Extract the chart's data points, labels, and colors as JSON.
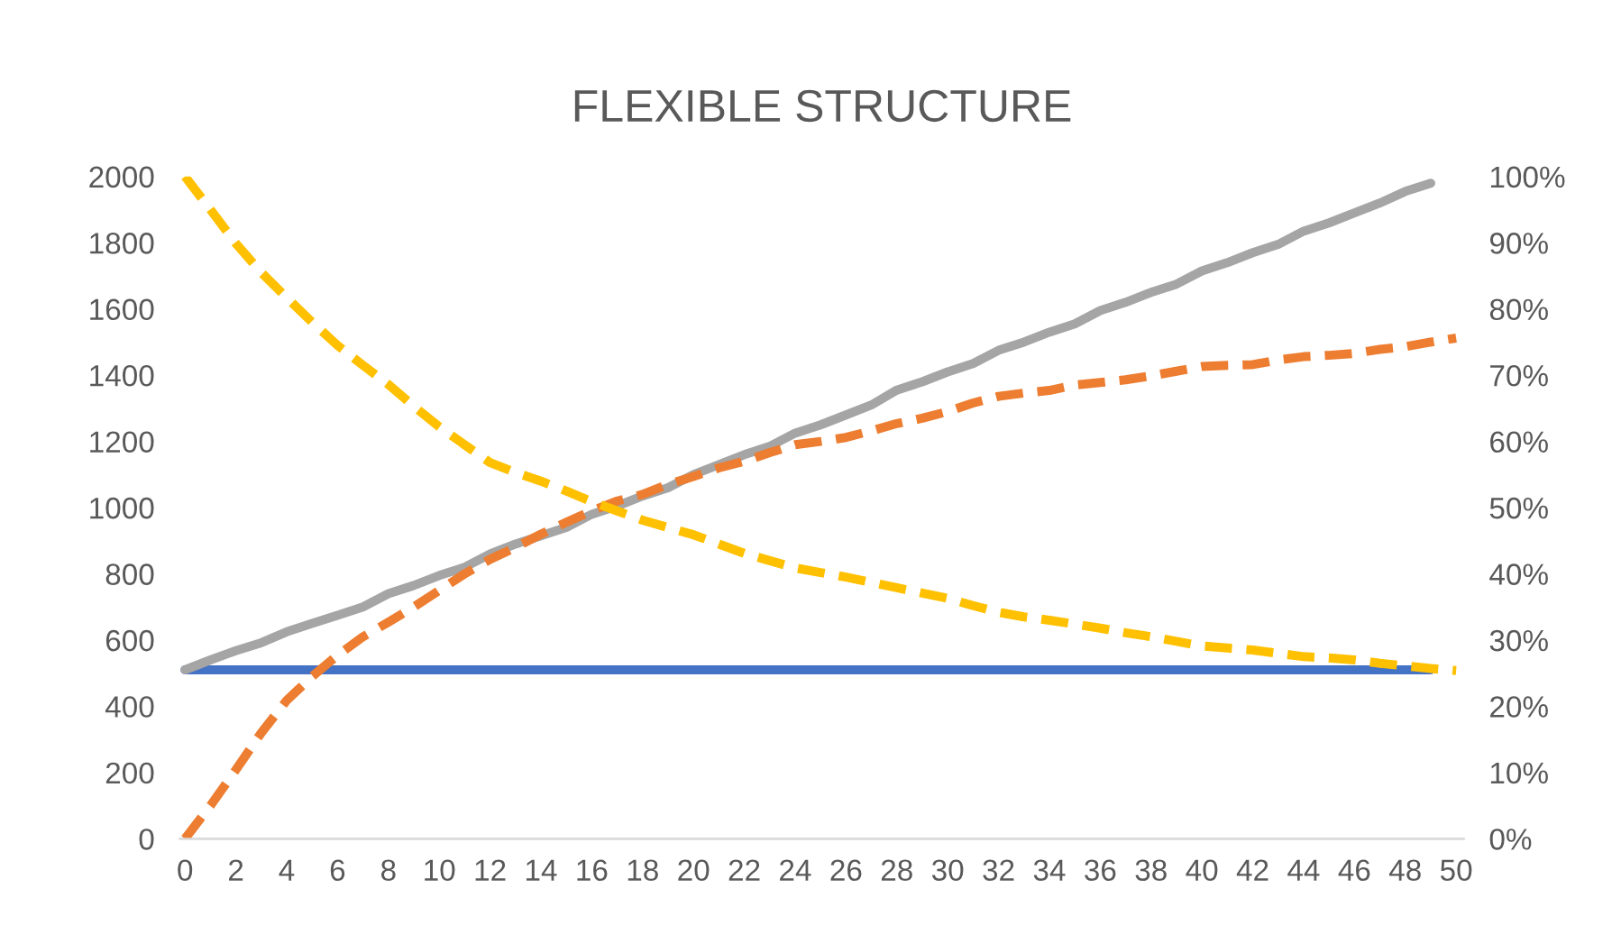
{
  "chart_data": {
    "type": "line",
    "title": "FLEXIBLE STRUCTURE",
    "categories": [
      "0",
      null,
      "2",
      null,
      "4",
      null,
      "6",
      null,
      "8",
      null,
      "10",
      null,
      "12",
      null,
      "14",
      null,
      "16",
      null,
      "18",
      null,
      "20",
      null,
      "22",
      null,
      "24",
      null,
      "26",
      null,
      "28",
      null,
      "30",
      null,
      "32",
      null,
      "34",
      null,
      "36",
      null,
      "38",
      null,
      "40",
      null,
      "42",
      null,
      "44",
      null,
      "46",
      null,
      "48",
      null,
      "50"
    ],
    "series": [
      {
        "color": "#4472c4",
        "line_style": "solid",
        "values": [
          510,
          510,
          510,
          510,
          510,
          510,
          510,
          510,
          510,
          510,
          510,
          510,
          510,
          510,
          510,
          510,
          510,
          510,
          510,
          510,
          510,
          510,
          510,
          510,
          510,
          510,
          510,
          510,
          510,
          510,
          510,
          510,
          510,
          510,
          510,
          510,
          510,
          510,
          510,
          510,
          510,
          510,
          510,
          510,
          510,
          510,
          510,
          510,
          510,
          510,
          null
        ]
      },
      {
        "color": "#a5a5a5",
        "line_style": "solid",
        "values": [
          510,
          540,
          568,
          592,
          625,
          650,
          675,
          700,
          740,
          765,
          795,
          820,
          860,
          890,
          915,
          940,
          980,
          1005,
          1035,
          1060,
          1100,
          1130,
          1160,
          1185,
          1225,
          1250,
          1280,
          1310,
          1355,
          1380,
          1410,
          1435,
          1475,
          1500,
          1530,
          1555,
          1595,
          1620,
          1650,
          1675,
          1715,
          1740,
          1770,
          1795,
          1835,
          1860,
          1890,
          1920,
          1955,
          1980,
          null
        ]
      },
      {
        "color": "#ed7d31",
        "line_style": "dashed",
        "axis": "y2",
        "values": [
          0,
          5,
          10.4,
          16,
          20.9,
          24.5,
          27.7,
          30.5,
          32.7,
          35,
          37.5,
          40,
          42.2,
          44,
          46,
          47.8,
          49.5,
          51,
          52,
          53.5,
          54.7,
          56,
          57,
          58.3,
          59.5,
          60,
          60.6,
          61.6,
          62.7,
          63.5,
          64.5,
          65.8,
          66.8,
          67.3,
          67.7,
          68.5,
          68.9,
          69.3,
          69.9,
          70.6,
          71.3,
          71.5,
          71.6,
          72.3,
          72.8,
          73,
          73.3,
          73.9,
          74.3,
          75,
          75.6
        ]
      },
      {
        "color": "#ffc000",
        "line_style": "dashed",
        "axis": "y2",
        "values": [
          100,
          95,
          89.9,
          85.5,
          81.7,
          78,
          74.5,
          71.5,
          68.6,
          65.3,
          62.2,
          59.5,
          56.8,
          55.3,
          54,
          52.5,
          50.9,
          49.5,
          48.1,
          47,
          45.9,
          44.5,
          43.1,
          42,
          40.9,
          40.2,
          39.5,
          38.7,
          37.9,
          37.1,
          36.3,
          35.2,
          34.2,
          33.5,
          33,
          32.4,
          31.8,
          31.1,
          30.5,
          29.8,
          29.1,
          28.8,
          28.5,
          28,
          27.5,
          27.3,
          27,
          26.5,
          26.1,
          25.7,
          25.4
        ]
      }
    ],
    "ylim": [
      0,
      2000
    ],
    "yticks": [
      0,
      200,
      400,
      600,
      800,
      1000,
      1200,
      1400,
      1600,
      1800,
      2000
    ],
    "y2lim": [
      0,
      100
    ],
    "y2ticks": [
      {
        "value": 0,
        "label": "0%"
      },
      {
        "value": 10,
        "label": "10%"
      },
      {
        "value": 20,
        "label": "20%"
      },
      {
        "value": 30,
        "label": "30%"
      },
      {
        "value": 40,
        "label": "40%"
      },
      {
        "value": 50,
        "label": "50%"
      },
      {
        "value": 60,
        "label": "60%"
      },
      {
        "value": 70,
        "label": "70%"
      },
      {
        "value": 80,
        "label": "80%"
      },
      {
        "value": 90,
        "label": "90%"
      },
      {
        "value": 100,
        "label": "100%"
      }
    ],
    "grid": false
  }
}
